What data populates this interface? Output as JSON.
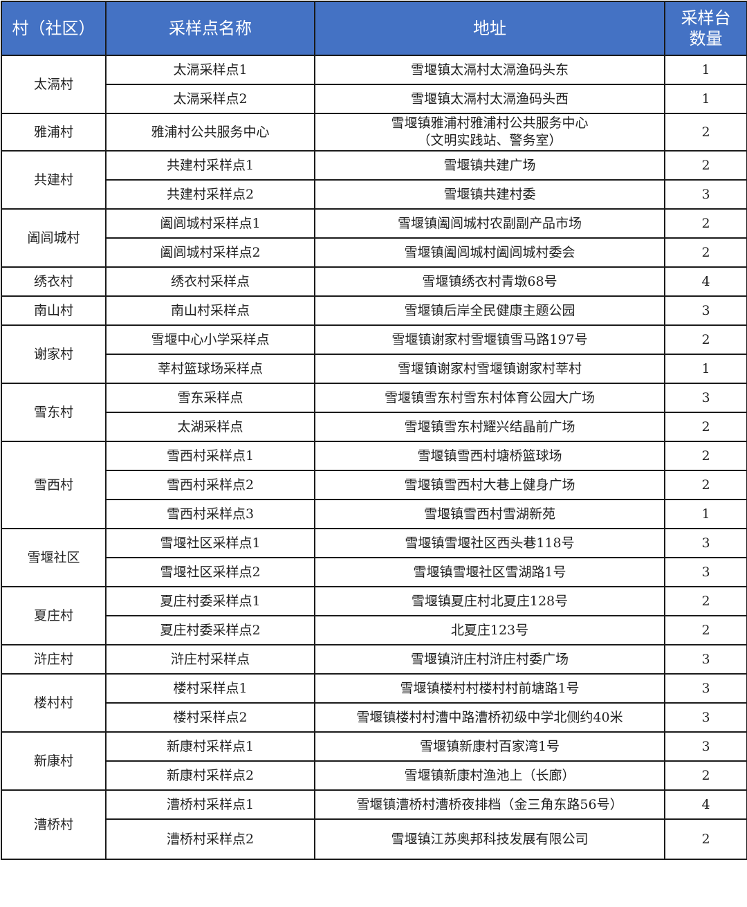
{
  "header": {
    "village": "村（社区）",
    "site": "采样点名称",
    "address": "地址",
    "count_l1": "采样台",
    "count_l2": "数量"
  },
  "header_color": "#4472C4",
  "groups": [
    {
      "village": "太滆村",
      "sites": [
        {
          "name": "太滆采样点1",
          "address": "雪堰镇太滆村太滆渔码头东",
          "count": "1"
        },
        {
          "name": "太滆采样点2",
          "address": "雪堰镇太滆村太滆渔码头西",
          "count": "1"
        }
      ]
    },
    {
      "village": "雅浦村",
      "sites": [
        {
          "name": "雅浦村公共服务中心",
          "address": "雪堰镇雅浦村雅浦村公共服务中心",
          "address2": "（文明实践站、警务室）",
          "count": "2"
        }
      ]
    },
    {
      "village": "共建村",
      "sites": [
        {
          "name": "共建村采样点1",
          "address": "雪堰镇共建广场",
          "count": "2"
        },
        {
          "name": "共建村采样点2",
          "address": "雪堰镇共建村委",
          "count": "3"
        }
      ]
    },
    {
      "village": "阖闾城村",
      "sites": [
        {
          "name": "阖闾城村采样点1",
          "address": "雪堰镇阖闾城村农副副产品市场",
          "count": "2"
        },
        {
          "name": "阖闾城村采样点2",
          "address": "雪堰镇阖闾城村阖闾城村委会",
          "count": "2"
        }
      ]
    },
    {
      "village": "绣衣村",
      "sites": [
        {
          "name": "绣衣村采样点",
          "address": "雪堰镇绣衣村青墩68号",
          "count": "4"
        }
      ]
    },
    {
      "village": "南山村",
      "sites": [
        {
          "name": "南山村采样点",
          "address": "雪堰镇后岸全民健康主题公园",
          "count": "3"
        }
      ]
    },
    {
      "village": "谢家村",
      "sites": [
        {
          "name": "雪堰中心小学采样点",
          "address": "雪堰镇谢家村雪堰镇雪马路197号",
          "count": "2"
        },
        {
          "name": "莘村篮球场采样点",
          "address": "雪堰镇谢家村雪堰镇谢家村莘村",
          "count": "1"
        }
      ]
    },
    {
      "village": "雪东村",
      "sites": [
        {
          "name": "雪东采样点",
          "address": "雪堰镇雪东村雪东村体育公园大广场",
          "count": "3"
        },
        {
          "name": "太湖采样点",
          "address": "雪堰镇雪东村耀兴结晶前广场",
          "count": "2"
        }
      ]
    },
    {
      "village": "雪西村",
      "sites": [
        {
          "name": "雪西村采样点1",
          "address": "雪堰镇雪西村塘桥篮球场",
          "count": "2"
        },
        {
          "name": "雪西村采样点2",
          "address": "雪堰镇雪西村大巷上健身广场",
          "count": "2"
        },
        {
          "name": "雪西村采样点3",
          "address": "雪堰镇雪西村雪湖新苑",
          "count": "1"
        }
      ]
    },
    {
      "village": "雪堰社区",
      "sites": [
        {
          "name": "雪堰社区采样点1",
          "address": "雪堰镇雪堰社区西头巷118号",
          "count": "3"
        },
        {
          "name": "雪堰社区采样点2",
          "address": "雪堰镇雪堰社区雪湖路1号",
          "count": "3"
        }
      ]
    },
    {
      "village": "夏庄村",
      "sites": [
        {
          "name": "夏庄村委采样点1",
          "address": "雪堰镇夏庄村北夏庄128号",
          "count": "2"
        },
        {
          "name": "夏庄村委采样点2",
          "address": "北夏庄123号",
          "count": "2"
        }
      ]
    },
    {
      "village": "浒庄村",
      "sites": [
        {
          "name": "浒庄村采样点",
          "address": "雪堰镇浒庄村浒庄村委广场",
          "count": "3"
        }
      ]
    },
    {
      "village": "楼村村",
      "sites": [
        {
          "name": "楼村采样点1",
          "address": "雪堰镇楼村村楼村村前塘路1号",
          "count": "3"
        },
        {
          "name": "楼村采样点2",
          "address": "雪堰镇楼村村漕中路漕桥初级中学北侧约40米",
          "count": "3"
        }
      ]
    },
    {
      "village": "新康村",
      "sites": [
        {
          "name": "新康村采样点1",
          "address": "雪堰镇新康村百家湾1号",
          "count": "3"
        },
        {
          "name": "新康村采样点2",
          "address": "雪堰镇新康村渔池上（长廊）",
          "count": "2"
        }
      ]
    },
    {
      "village": "漕桥村",
      "sites": [
        {
          "name": "漕桥村采样点1",
          "address": "雪堰镇漕桥村漕桥夜排档（金三角东路56号）",
          "count": "4"
        },
        {
          "name": "漕桥村采样点2",
          "address": "雪堰镇江苏奥邦科技发展有限公司",
          "count": "2"
        }
      ]
    }
  ]
}
